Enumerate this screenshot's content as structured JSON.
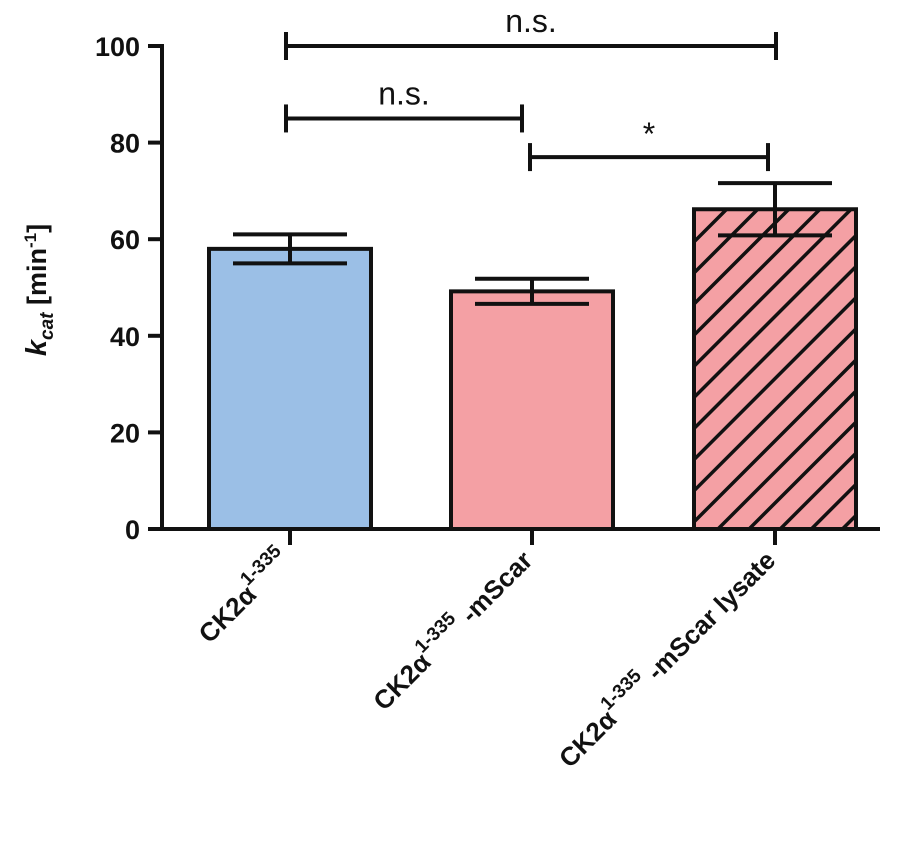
{
  "chart_data": {
    "type": "bar",
    "ylabel": {
      "symbol": "k",
      "subscript": "cat",
      "unit": " [min",
      "unit_sup": "-1",
      "unit_close": "]"
    },
    "ylim": [
      0,
      100
    ],
    "yticks": [
      0,
      20,
      40,
      60,
      80,
      100
    ],
    "grid": false,
    "categories": [
      {
        "base": "CK2α",
        "sup": "1-335",
        "suffix": ""
      },
      {
        "base": "CK2α",
        "sup": "1-335",
        "suffix": " -mScar"
      },
      {
        "base": "CK2α",
        "sup": "1-335",
        "suffix": " -mScar lysate"
      }
    ],
    "values": [
      58,
      49.2,
      66.2
    ],
    "errors": [
      3.0,
      2.6,
      5.4
    ],
    "fills": [
      "#9bbfe6",
      "#f4a0a4",
      "#f4a0a4"
    ],
    "hatched": [
      false,
      false,
      true
    ],
    "significance": [
      {
        "from": 0,
        "to": 1,
        "label": "n.s.",
        "y": 85
      },
      {
        "from": 1,
        "to": 2,
        "label": "*",
        "y": 77
      },
      {
        "from": 0,
        "to": 2,
        "label": "n.s.",
        "y": 100
      }
    ]
  }
}
